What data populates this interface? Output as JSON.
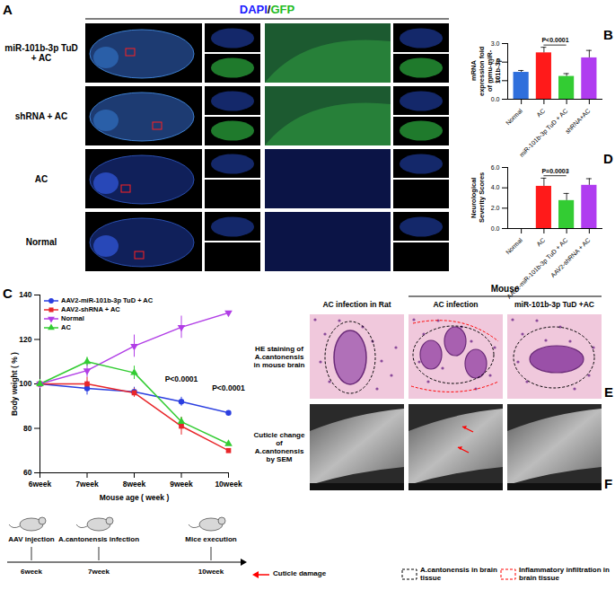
{
  "panel_labels": [
    "A",
    "B",
    "C",
    "D",
    "E",
    "F"
  ],
  "panel_a": {
    "header": "DAPI/GFP",
    "rows": [
      "miR-101b-3p TuD + AC",
      "shRNA + AC",
      "AC",
      "Normal"
    ]
  },
  "chart_data": [
    {
      "type": "bar",
      "ylabel": "mRNA expression fold of mmu-miR-101b-3p",
      "categories": [
        "Normal",
        "AC",
        "miR-101b-3p TuD + AC",
        "shRNA+AC"
      ],
      "values": [
        1.45,
        2.5,
        1.23,
        2.23
      ],
      "errors": [
        0.1,
        0.3,
        0.15,
        0.4
      ],
      "colors": [
        "#2f6fdc",
        "#ff1a1a",
        "#33cc33",
        "#b03cf0"
      ],
      "ylim": [
        0,
        3
      ],
      "yticks": [
        0,
        1,
        2,
        3
      ],
      "annotations": [
        {
          "text": "P<0.0001",
          "between": [
            "AC",
            "miR-101b-3p TuD + AC"
          ]
        }
      ]
    },
    {
      "type": "line",
      "xlabel": "Mouse age ( week )",
      "ylabel": "Body weight ( % )",
      "x": [
        6,
        7,
        8,
        9,
        10
      ],
      "xlim": [
        6,
        10
      ],
      "xticks": [
        {
          "value": 6,
          "label": "6week"
        },
        {
          "value": 7,
          "label": "7week"
        },
        {
          "value": 8,
          "label": "8week"
        },
        {
          "value": 9,
          "label": "9week"
        },
        {
          "value": 10,
          "label": "10week"
        }
      ],
      "ylim": [
        60,
        140
      ],
      "yticks": [
        60,
        80,
        100,
        120,
        140
      ],
      "legend": "top-left",
      "series": [
        {
          "name": "AAV2-miR-101b-3p TuD + AC",
          "color": "#2b3fe0",
          "marker": "circle",
          "values": [
            100,
            98,
            96.5,
            92,
            87
          ],
          "errors": [
            2,
            3,
            2,
            2,
            3
          ]
        },
        {
          "name": "AAV2-shRNA + AC",
          "color": "#e8262a",
          "marker": "square",
          "values": [
            100,
            100,
            96,
            81,
            70
          ],
          "errors": [
            2,
            3,
            2,
            4,
            6
          ]
        },
        {
          "name": "Normal",
          "color": "#b13ee6",
          "marker": "triangle-down",
          "values": [
            100,
            106,
            117,
            125.5,
            132
          ],
          "errors": [
            2,
            3,
            5,
            5,
            8
          ]
        },
        {
          "name": "AC",
          "color": "#33cc33",
          "marker": "triangle-up",
          "values": [
            100,
            110,
            105,
            83,
            73
          ],
          "errors": [
            2,
            2,
            3,
            2,
            5
          ]
        }
      ],
      "annotations": [
        {
          "text": "P<0.0001",
          "x": 9,
          "y": 102
        },
        {
          "text": "P<0.0001",
          "x": 10,
          "y": 98
        }
      ]
    },
    {
      "type": "bar",
      "ylabel": "Neurological Severity Scores",
      "categories": [
        "Normal",
        "AC",
        "AAV2-miR-101b-3p TuD + AC",
        "AAV2-shRNA + AC"
      ],
      "values": [
        0,
        4.15,
        2.75,
        4.25
      ],
      "errors": [
        0,
        0.8,
        0.7,
        0.65
      ],
      "colors": [
        "#2f6fdc",
        "#ff1a1a",
        "#33cc33",
        "#b03cf0"
      ],
      "ylim": [
        0,
        6
      ],
      "yticks": [
        0,
        2,
        4,
        6
      ],
      "annotations": [
        {
          "text": "P=0.0003",
          "between": [
            "AC",
            "AAV2-miR-101b-3p TuD + AC"
          ]
        }
      ]
    }
  ],
  "timeline": [
    {
      "label": "AAV injection",
      "week": "6week"
    },
    {
      "label": "A.cantonensis infection",
      "week": "7week"
    },
    {
      "label": "Mice execution",
      "week": "10week"
    }
  ],
  "panel_ef": {
    "group_header": "Mouse",
    "columns": [
      "AC infection in Rat",
      "AC infection",
      "miR-101b-3p TuD +AC"
    ],
    "rows": [
      "HE staining of A.cantonensis in mouse brain",
      "Cuticle change of A.cantonensis by SEM"
    ],
    "legend": [
      {
        "label": "Cuticle damage",
        "color": "#ff0000"
      },
      {
        "label": "A.cantonensis in brain tissue",
        "color": "#000000"
      },
      {
        "label": "Inflammatory infiltration in brain tissue",
        "color": "#ff0000"
      }
    ]
  }
}
